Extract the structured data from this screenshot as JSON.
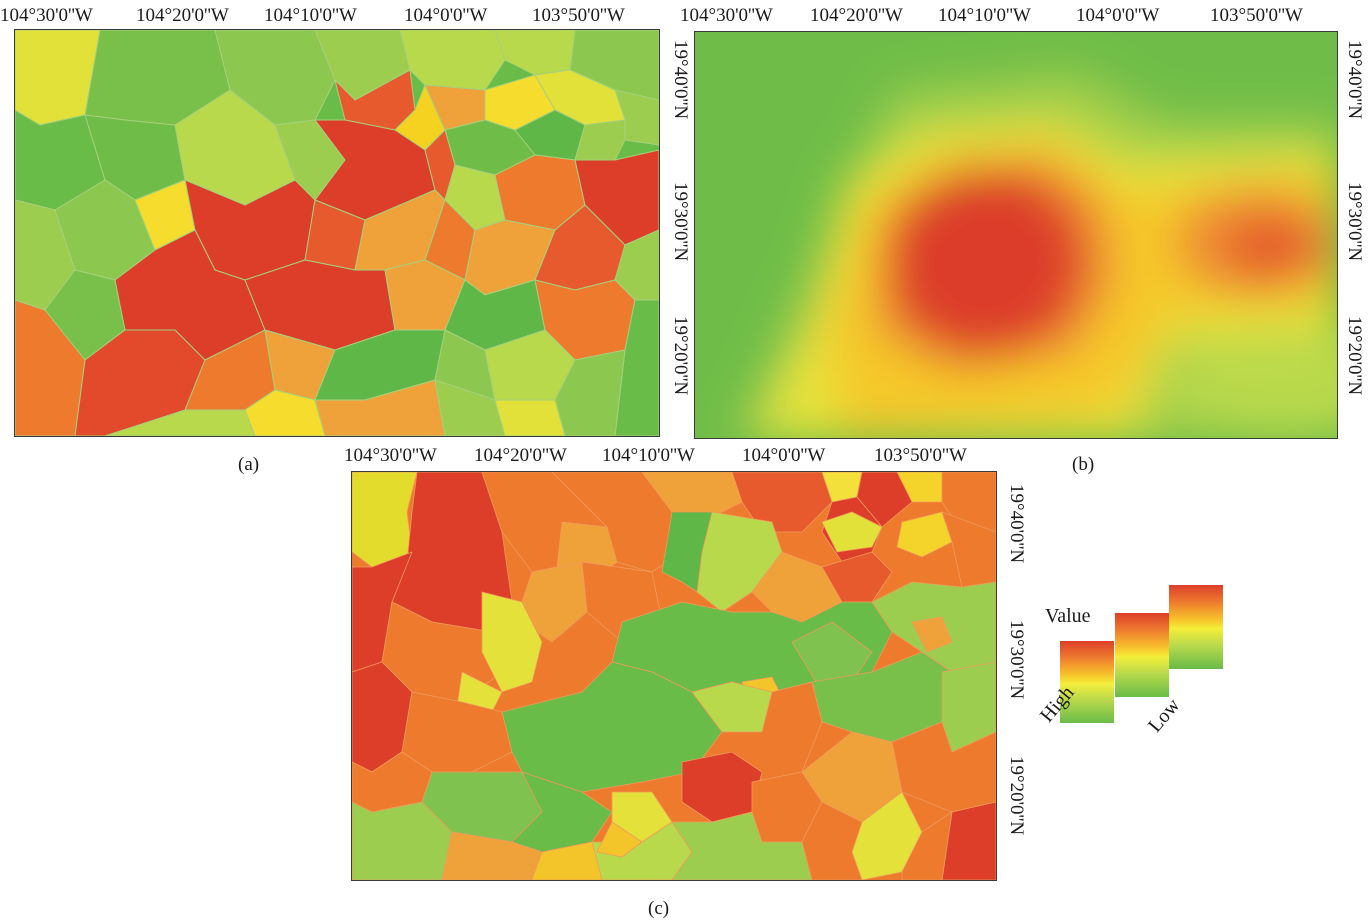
{
  "panels": {
    "a": {
      "caption": "(a)",
      "lon_ticks": [
        "104°30'0''W",
        "104°20'0''W",
        "104°10'0''W",
        "104°0'0''W",
        "103°50'0''W"
      ]
    },
    "b": {
      "caption": "(b)",
      "lon_ticks": [
        "104°30'0''W",
        "104°20'0''W",
        "104°10'0''W",
        "104°0'0''W",
        "103°50'0''W"
      ],
      "lat_ticks": [
        "19°40'0''N",
        "19°30'0''N",
        "19°20'0''N"
      ]
    },
    "c": {
      "caption": "(c)",
      "lon_ticks": [
        "104°30'0''W",
        "104°20'0''W",
        "104°10'0''W",
        "104°0'0''W",
        "103°50'0''W"
      ],
      "lat_ticks": [
        "19°40'0''N",
        "19°30'0''N",
        "19°20'0''N"
      ]
    }
  },
  "legend": {
    "title": "Value",
    "high_label": "High",
    "low_label": "Low"
  },
  "colors": {
    "red": "#dc3e2a",
    "orange": "#ee7a2e",
    "yellow": "#f4e23a",
    "light_green": "#b9d94c",
    "green": "#69bc48"
  }
}
